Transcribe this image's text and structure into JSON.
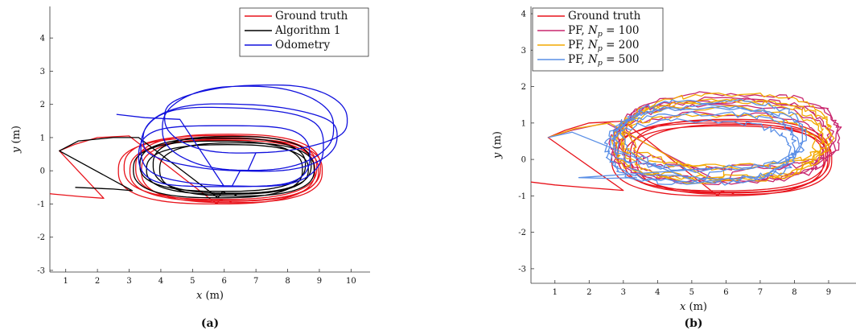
{
  "chart_data": [
    {
      "type": "line",
      "caption": "(a)",
      "xlabel": "x (m)",
      "ylabel": "y (m)",
      "xlim": [
        0.5,
        10.6
      ],
      "ylim": [
        -3.05,
        4.95
      ],
      "xticks": [
        1,
        2,
        3,
        4,
        5,
        6,
        7,
        8,
        9,
        10
      ],
      "yticks": [
        -3,
        -2,
        -1,
        0,
        1,
        2,
        3,
        4
      ],
      "legend": "top-right",
      "series": [
        {
          "name": "Ground truth",
          "color": "#e8141c",
          "kind": "gt",
          "loops": 5,
          "center": [
            6.0,
            0.05
          ],
          "rx": 3.1,
          "ry": 1.0,
          "start": [
            [
              -0.2,
              -0.62
            ],
            [
              0.6,
              -0.7
            ],
            [
              1.5,
              -0.78
            ],
            [
              2.2,
              -0.83
            ]
          ],
          "entry": [
            [
              0.8,
              0.6
            ],
            [
              1.3,
              0.8
            ],
            [
              2.0,
              1.0
            ],
            [
              3.0,
              1.05
            ]
          ]
        },
        {
          "name": "Algorithm 1",
          "color": "#000000",
          "kind": "alg",
          "loops": 5,
          "center": [
            6.1,
            0.1
          ],
          "rx": 2.9,
          "ry": 0.9,
          "start": [
            [
              1.3,
              -0.5
            ],
            [
              2.5,
              -0.55
            ],
            [
              3.1,
              -0.6
            ]
          ],
          "entry": [
            [
              0.8,
              0.6
            ],
            [
              1.4,
              0.9
            ],
            [
              2.5,
              1.0
            ],
            [
              3.3,
              1.0
            ]
          ]
        },
        {
          "name": "Odometry",
          "color": "#1111dd",
          "kind": "odo",
          "loops": 5,
          "center": [
            6.5,
            1.0
          ],
          "rx": 3.0,
          "ry": 1.15,
          "entry": [
            [
              2.6,
              1.7
            ],
            [
              3.5,
              1.6
            ],
            [
              4.6,
              1.55
            ]
          ]
        }
      ]
    },
    {
      "type": "line",
      "caption": "(b)",
      "xlabel": "x (m)",
      "ylabel": "y (m)",
      "xlim": [
        0.3,
        9.8
      ],
      "ylim": [
        -3.4,
        4.2
      ],
      "xticks": [
        1,
        2,
        3,
        4,
        5,
        6,
        7,
        8,
        9
      ],
      "yticks": [
        -3,
        -2,
        -1,
        0,
        1,
        2,
        3,
        4
      ],
      "legend": "top-left",
      "series": [
        {
          "name": "Ground truth",
          "color": "#e8141c",
          "kind": "gt",
          "loops": 5,
          "center": [
            6.0,
            0.05
          ],
          "rx": 3.1,
          "ry": 1.0,
          "start": [
            [
              0.3,
              -0.62
            ],
            [
              1.0,
              -0.7
            ],
            [
              2.0,
              -0.78
            ],
            [
              3.0,
              -0.85
            ]
          ],
          "entry": [
            [
              0.8,
              0.6
            ],
            [
              1.3,
              0.8
            ],
            [
              2.0,
              1.0
            ],
            [
              3.0,
              1.05
            ]
          ]
        },
        {
          "name": "PF, N_p = 100",
          "label_main": "PF, ",
          "label_var": "N",
          "label_sub": "p",
          "label_val": " = 100",
          "color": "#c8266e",
          "kind": "pf",
          "loops": 5,
          "center": [
            6.0,
            0.55
          ],
          "rx": 3.2,
          "ry": 1.05,
          "entry": [
            [
              0.8,
              0.6
            ],
            [
              1.5,
              0.8
            ],
            [
              2.5,
              1.0
            ]
          ]
        },
        {
          "name": "PF, N_p = 200",
          "label_main": "PF, ",
          "label_var": "N",
          "label_sub": "p",
          "label_val": " = 200",
          "color": "#f2a900",
          "kind": "pf",
          "loops": 5,
          "center": [
            5.9,
            0.55
          ],
          "rx": 3.05,
          "ry": 1.0,
          "entry": [
            [
              0.8,
              0.6
            ],
            [
              1.6,
              0.85
            ],
            [
              2.6,
              1.0
            ]
          ]
        },
        {
          "name": "PF, N_p = 500",
          "label_main": "PF, ",
          "label_var": "N",
          "label_sub": "p",
          "label_val": " = 500",
          "color": "#5a8fe6",
          "kind": "pf",
          "loops": 5,
          "center": [
            5.4,
            0.45
          ],
          "rx": 2.75,
          "ry": 0.95,
          "entry": [
            [
              0.8,
              0.6
            ],
            [
              1.5,
              0.75
            ]
          ],
          "tail": [
            [
              1.7,
              -0.5
            ],
            [
              2.5,
              -0.52
            ],
            [
              3.4,
              -0.5
            ]
          ]
        }
      ]
    }
  ]
}
